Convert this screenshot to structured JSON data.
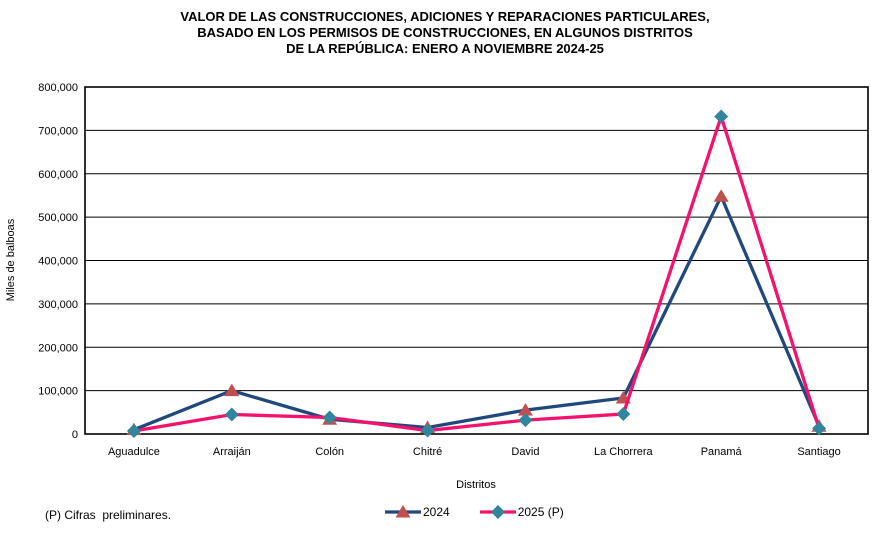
{
  "header": {
    "title_lines": [
      "VALOR DE LAS CONSTRUCCIONES, ADICIONES Y REPARACIONES PARTICULARES,",
      "BASADO EN LOS PERMISOS DE CONSTRUCCIONES, EN ALGUNOS DISTRITOS",
      "DE LA REPÚBLICA: ENERO A NOVIEMBRE 2024-25"
    ]
  },
  "chart_data": {
    "type": "line",
    "categories": [
      "Aguadulce",
      "Arraiján",
      "Colón",
      "Chitré",
      "David",
      "La Chorrera",
      "Panamá",
      "Santiago"
    ],
    "series": [
      {
        "name": "2024",
        "values": [
          10000,
          100000,
          34000,
          15000,
          55000,
          83000,
          548000,
          18000
        ],
        "line_color": "#1F497D",
        "marker": "triangle",
        "marker_color": "#C0504D"
      },
      {
        "name": "2025 (P)",
        "values": [
          7000,
          45000,
          38000,
          8000,
          32000,
          46000,
          732000,
          13000
        ],
        "line_color": "#F5116C",
        "marker": "diamond",
        "marker_color": "#31859C"
      }
    ],
    "title": "VALOR DE LAS CONSTRUCCIONES, ADICIONES Y REPARACIONES PARTICULARES, BASADO EN LOS PERMISOS DE CONSTRUCCIONES, EN ALGUNOS DISTRITOS DE LA REPÚBLICA: ENERO A NOVIEMBRE 2024-25",
    "xlabel": "Distritos",
    "ylabel": "Miles de balboas",
    "ylim": [
      0,
      800000
    ],
    "ytick_step": 100000,
    "grid": true,
    "legend_position": "bottom-center"
  },
  "footnote": "(P) Cifras  preliminares.",
  "colors": {
    "axis": "#000000",
    "gridline": "#000000",
    "background": "#FFFFFF"
  }
}
